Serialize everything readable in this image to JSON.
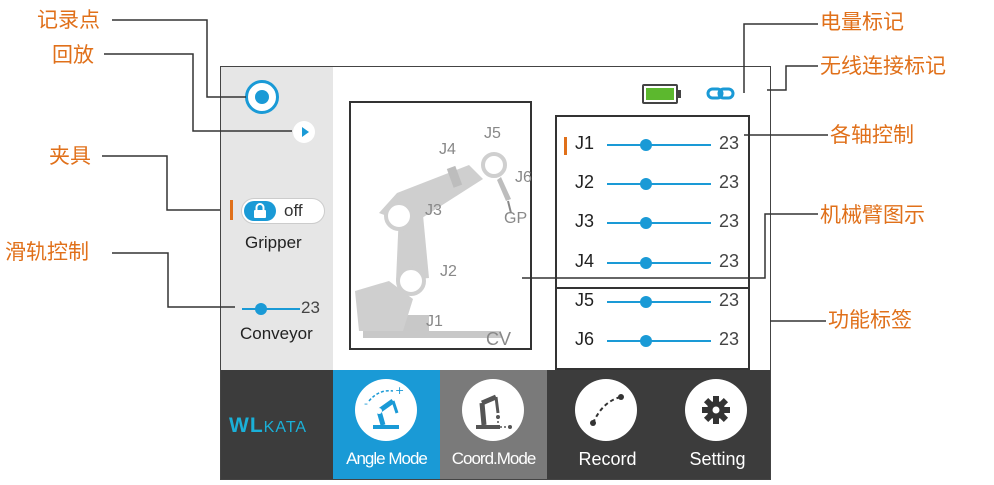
{
  "annotations": {
    "record_point": "记录点",
    "playback": "回放",
    "gripper": "夹具",
    "rail_control": "滑轨控制",
    "battery_mark": "电量标记",
    "wireless_mark": "无线连接标记",
    "axis_control": "各轴控制",
    "arm_diagram": "机械臂图示",
    "function_tabs": "功能标签"
  },
  "gripper": {
    "state": "off",
    "label": "Gripper"
  },
  "conveyor": {
    "value": "23",
    "label": "Conveyor"
  },
  "arm_diagram": {
    "labels": [
      "J1",
      "J2",
      "J3",
      "J4",
      "J5",
      "J6",
      "GP",
      "CV"
    ]
  },
  "joints": [
    {
      "name": "J1",
      "value": "23"
    },
    {
      "name": "J2",
      "value": "23"
    },
    {
      "name": "J3",
      "value": "23"
    },
    {
      "name": "J4",
      "value": "23"
    },
    {
      "name": "J5",
      "value": "23"
    },
    {
      "name": "J6",
      "value": "23"
    }
  ],
  "logo": "WLKATA",
  "tabs": [
    {
      "label": "Angle Mode",
      "icon": "angle-mode-icon"
    },
    {
      "label": "Coord.Mode",
      "icon": "coord-mode-icon"
    },
    {
      "label": "Record",
      "icon": "record-curve-icon"
    },
    {
      "label": "Setting",
      "icon": "gear-icon"
    }
  ],
  "colors": {
    "accent": "#e0701a",
    "active_tab": "#1a9ad6",
    "inactive_tab": "#7a7a7a",
    "battery": "#5cb82e",
    "slider": "#1a9ad6"
  }
}
